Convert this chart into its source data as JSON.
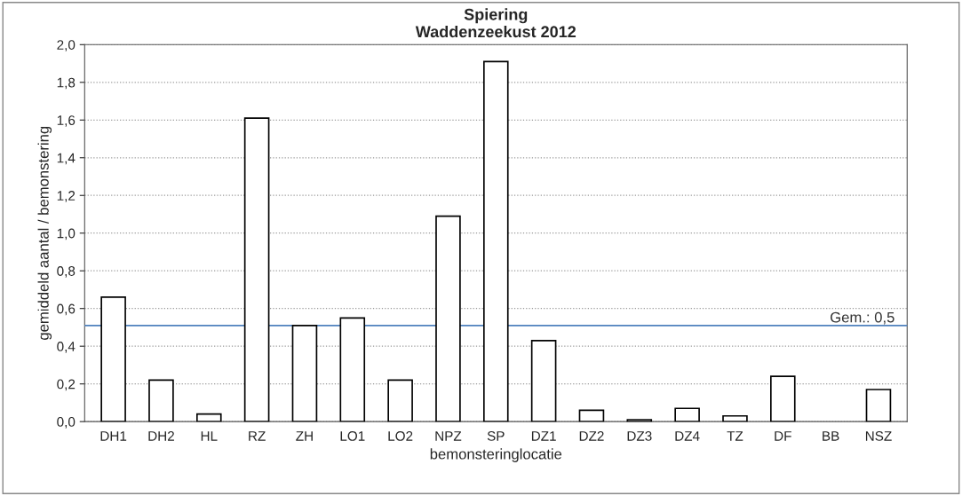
{
  "chart_data": {
    "type": "bar",
    "title": "Spiering\nWaddenzeekust 2012",
    "xlabel": "bemonsteringlocatie",
    "ylabel": "gemiddeld aantal / bemonstering",
    "categories": [
      "DH1",
      "DH2",
      "HL",
      "RZ",
      "ZH",
      "LO1",
      "LO2",
      "NPZ",
      "SP",
      "DZ1",
      "DZ2",
      "DZ3",
      "DZ4",
      "TZ",
      "DF",
      "BB",
      "NSZ"
    ],
    "values": [
      0.66,
      0.22,
      0.04,
      1.61,
      0.51,
      0.55,
      0.22,
      1.09,
      1.91,
      0.43,
      0.06,
      0.01,
      0.07,
      0.03,
      0.24,
      0,
      0.17
    ],
    "color": "#ffffff",
    "ylim": [
      0,
      2
    ],
    "yticks": [
      {
        "value": 0,
        "label": "0,0"
      },
      {
        "value": 0.2,
        "label": "0,2"
      },
      {
        "value": 0.4,
        "label": "0,4"
      },
      {
        "value": 0.6,
        "label": "0,6"
      },
      {
        "value": 0.8,
        "label": "0,8"
      },
      {
        "value": 1.0,
        "label": "1,0"
      },
      {
        "value": 1.2,
        "label": "1,2"
      },
      {
        "value": 1.4,
        "label": "1,4"
      },
      {
        "value": 1.6,
        "label": "1,6"
      },
      {
        "value": 1.8,
        "label": "1,8"
      },
      {
        "value": 2.0,
        "label": "2,0"
      }
    ],
    "grid": "y",
    "ref_lines": [
      {
        "axis": "y",
        "value": 0.51,
        "label": "Gem.: 0,5",
        "color": "#4f81bd"
      }
    ]
  }
}
